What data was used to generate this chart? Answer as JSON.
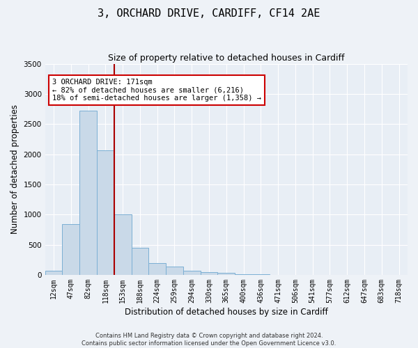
{
  "title": "3, ORCHARD DRIVE, CARDIFF, CF14 2AE",
  "subtitle": "Size of property relative to detached houses in Cardiff",
  "xlabel": "Distribution of detached houses by size in Cardiff",
  "ylabel": "Number of detached properties",
  "footnote": "Contains HM Land Registry data © Crown copyright and database right 2024.\nContains public sector information licensed under the Open Government Licence v3.0.",
  "bar_labels": [
    "12sqm",
    "47sqm",
    "82sqm",
    "118sqm",
    "153sqm",
    "188sqm",
    "224sqm",
    "259sqm",
    "294sqm",
    "330sqm",
    "365sqm",
    "400sqm",
    "436sqm",
    "471sqm",
    "506sqm",
    "541sqm",
    "577sqm",
    "612sqm",
    "647sqm",
    "683sqm",
    "718sqm"
  ],
  "bar_values": [
    70,
    840,
    2720,
    2060,
    1000,
    450,
    200,
    140,
    70,
    50,
    30,
    15,
    8,
    4,
    2,
    1,
    1,
    0,
    0,
    0,
    0
  ],
  "bar_color": "#c9d9e8",
  "bar_edgecolor": "#7bafd4",
  "ylim": [
    0,
    3500
  ],
  "yticks": [
    0,
    500,
    1000,
    1500,
    2000,
    2500,
    3000,
    3500
  ],
  "property_line_x": 3.5,
  "property_line_color": "#aa0000",
  "annotation_text": "3 ORCHARD DRIVE: 171sqm\n← 82% of detached houses are smaller (6,216)\n18% of semi-detached houses are larger (1,358) →",
  "annotation_box_color": "#cc0000",
  "fig_bg": "#eef2f7",
  "plot_bg": "#e8eef5",
  "grid_color": "#ffffff",
  "title_fontsize": 11,
  "subtitle_fontsize": 9,
  "axis_label_fontsize": 8.5,
  "tick_fontsize": 7
}
